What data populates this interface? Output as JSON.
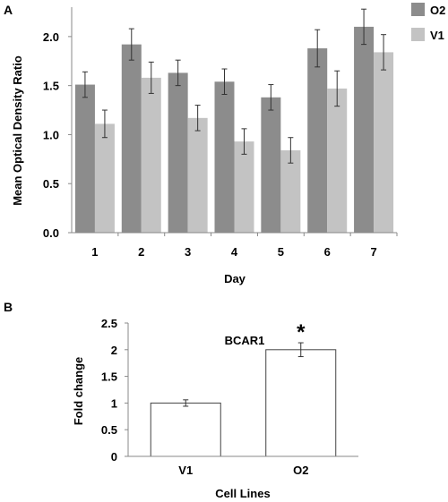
{
  "chart_data": [
    {
      "panel_label": "A",
      "type": "bar",
      "title": "",
      "xlabel": "Day",
      "ylabel": "Mean Optical Density Ratio",
      "categories": [
        "1",
        "2",
        "3",
        "4",
        "5",
        "6",
        "7"
      ],
      "ylim": [
        0,
        2.3
      ],
      "yticks": [
        "0.0",
        "0.5",
        "1.0",
        "1.5",
        "2.0"
      ],
      "legend_position": "top-right, outside plot",
      "grid": false,
      "series": [
        {
          "name": "O2",
          "color": "#8c8c8c",
          "values": [
            1.51,
            1.92,
            1.63,
            1.54,
            1.38,
            1.88,
            2.1
          ],
          "errors": [
            0.13,
            0.16,
            0.13,
            0.13,
            0.13,
            0.19,
            0.18
          ]
        },
        {
          "name": "V1",
          "color": "#c3c3c3",
          "values": [
            1.11,
            1.58,
            1.17,
            0.93,
            0.84,
            1.47,
            1.84
          ],
          "errors": [
            0.14,
            0.16,
            0.13,
            0.13,
            0.13,
            0.18,
            0.18
          ]
        }
      ]
    },
    {
      "panel_label": "B",
      "type": "bar",
      "title": "BCAR1",
      "xlabel": "Cell Lines",
      "ylabel": "Fold change",
      "categories": [
        "V1",
        "O2"
      ],
      "values": [
        1.0,
        2.0
      ],
      "errors": [
        0.06,
        0.13
      ],
      "significance": [
        "",
        "*"
      ],
      "ylim": [
        0,
        2.5
      ],
      "yticks": [
        "0",
        "0.5",
        "1",
        "1.5",
        "2",
        "2.5"
      ],
      "bar_color": "#ffffff",
      "grid": false
    }
  ]
}
